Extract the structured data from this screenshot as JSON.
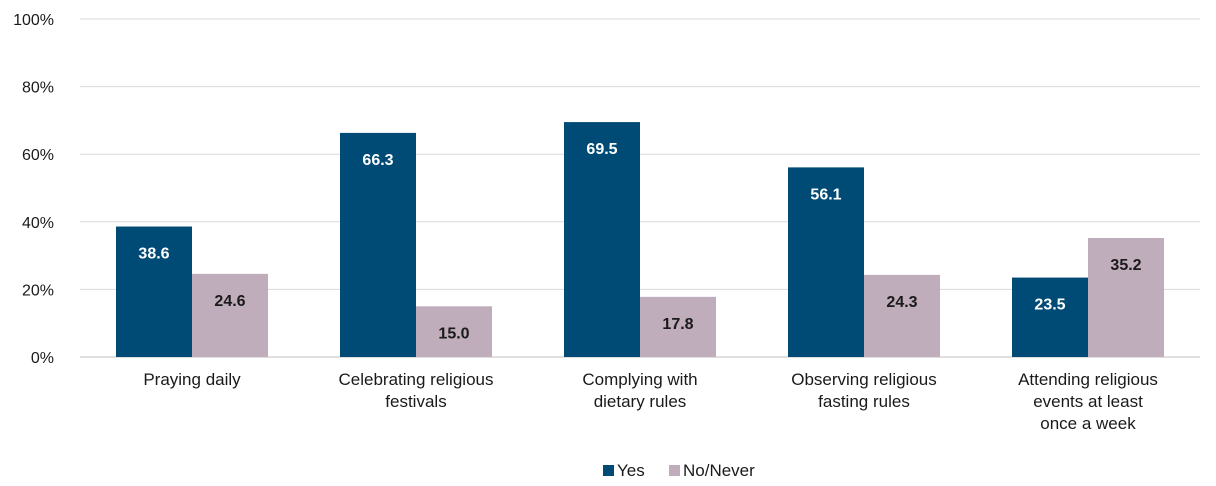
{
  "chart_data": {
    "type": "bar",
    "categories": [
      [
        "Praying daily"
      ],
      [
        "Celebrating religious",
        "festivals"
      ],
      [
        "Complying with",
        "dietary rules"
      ],
      [
        "Observing religious",
        "fasting rules"
      ],
      [
        "Attending religious",
        "events at least",
        "once a week"
      ]
    ],
    "series": [
      {
        "name": "Yes",
        "color": "#004b76",
        "label_color": "#ffffff",
        "values": [
          38.6,
          66.3,
          69.5,
          56.1,
          23.5
        ]
      },
      {
        "name": "No/Never",
        "color": "#c0adbb",
        "label_color": "#1a1a1a",
        "values": [
          24.6,
          15.0,
          17.8,
          24.3,
          35.2
        ]
      }
    ],
    "ylim": [
      0,
      100
    ],
    "yticks": [
      0,
      20,
      40,
      60,
      80,
      100
    ],
    "ytick_suffix": "%",
    "value_decimals": 1,
    "grid": true,
    "legend_position": "bottom-center"
  }
}
